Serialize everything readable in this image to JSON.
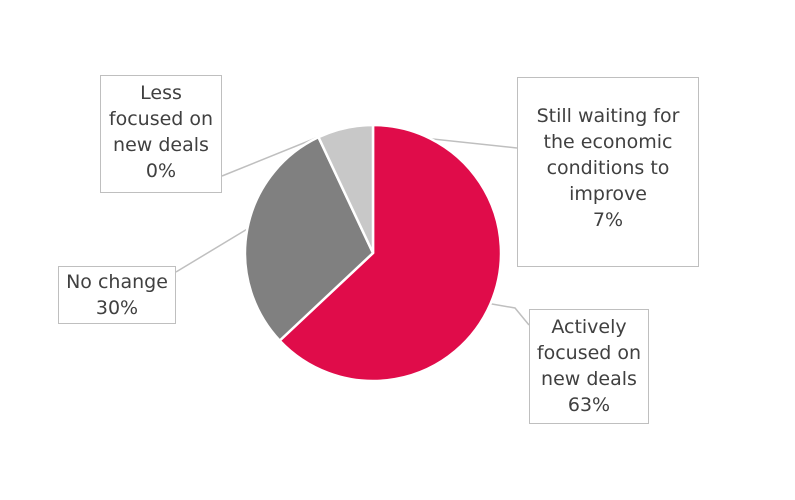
{
  "chart_data": {
    "type": "pie",
    "start_angle_deg": 0,
    "direction": "clockwise",
    "slices": [
      {
        "name": "Actively focused on new deals",
        "value": 63,
        "pct_label": "63%",
        "color": "#e00c4a",
        "label_lines": [
          "Actively",
          "focused on",
          "new deals"
        ]
      },
      {
        "name": "No change",
        "value": 30,
        "pct_label": "30%",
        "color": "#808080",
        "label_lines": [
          "No change"
        ]
      },
      {
        "name": "Still waiting for the economic conditions to improve",
        "value": 7,
        "pct_label": "7%",
        "color": "#c8c8c8",
        "label_lines": [
          "Still waiting for",
          "the economic",
          "conditions to",
          "improve"
        ]
      },
      {
        "name": "Less focused on new deals",
        "value": 0,
        "pct_label": "0%",
        "color": "#b0b0b0",
        "label_lines": [
          "Less",
          "focused on",
          "new deals"
        ]
      }
    ],
    "colors": {
      "leader_line": "#bfbfbf",
      "callout_border": "#bfbfbf",
      "text": "#404040",
      "slice_border": "#ffffff"
    }
  }
}
